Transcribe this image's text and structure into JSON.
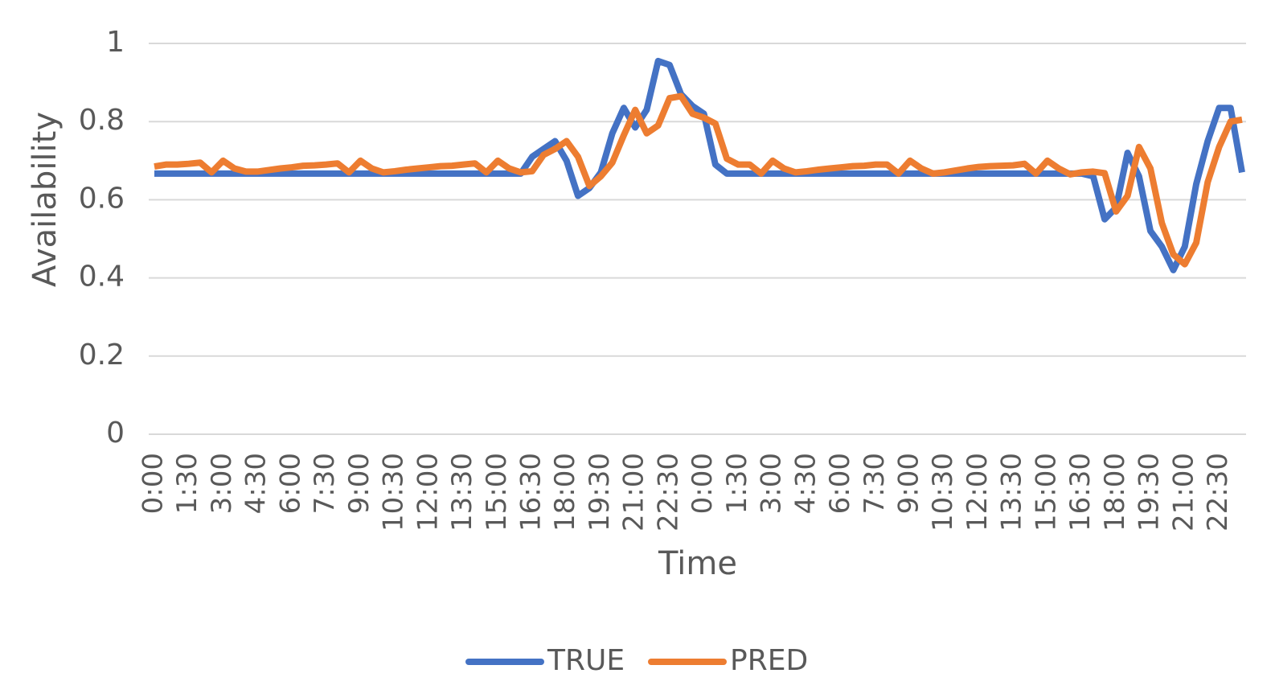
{
  "chart_data": {
    "type": "line",
    "x_label": "Time",
    "y_label": "Availability",
    "categories": [
      "0:00",
      null,
      null,
      "1:30",
      null,
      null,
      "3:00",
      null,
      null,
      "4:30",
      null,
      null,
      "6:00",
      null,
      null,
      "7:30",
      null,
      null,
      "9:00",
      null,
      null,
      "10:30",
      null,
      null,
      "12:00",
      null,
      null,
      "13:30",
      null,
      null,
      "15:00",
      null,
      null,
      "16:30",
      null,
      null,
      "18:00",
      null,
      null,
      "19:30",
      null,
      null,
      "21:00",
      null,
      null,
      "22:30",
      null,
      null,
      "0:00",
      null,
      null,
      "1:30",
      null,
      null,
      "3:00",
      null,
      null,
      "4:30",
      null,
      null,
      "6:00",
      null,
      null,
      "7:30",
      null,
      null,
      "9:00",
      null,
      null,
      "10:30",
      null,
      null,
      "12:00",
      null,
      null,
      "13:30",
      null,
      null,
      "15:00",
      null,
      null,
      "16:30",
      null,
      null,
      "18:00",
      null,
      null,
      "19:30",
      null,
      null,
      "21:00",
      null,
      null,
      "22:30",
      null,
      null
    ],
    "series": [
      {
        "name": "TRUE",
        "color": "#4472c4",
        "values": [
          0.667,
          0.667,
          0.667,
          0.667,
          0.667,
          0.667,
          0.667,
          0.667,
          0.667,
          0.667,
          0.667,
          0.667,
          0.667,
          0.667,
          0.667,
          0.667,
          0.667,
          0.667,
          0.667,
          0.667,
          0.667,
          0.667,
          0.667,
          0.667,
          0.667,
          0.667,
          0.667,
          0.667,
          0.667,
          0.667,
          0.667,
          0.667,
          0.667,
          0.71,
          0.73,
          0.75,
          0.7,
          0.61,
          0.63,
          0.67,
          0.77,
          0.835,
          0.785,
          0.83,
          0.955,
          0.945,
          0.87,
          0.84,
          0.82,
          0.69,
          0.667,
          0.667,
          0.667,
          0.667,
          0.667,
          0.667,
          0.667,
          0.667,
          0.667,
          0.667,
          0.667,
          0.667,
          0.667,
          0.667,
          0.667,
          0.667,
          0.667,
          0.667,
          0.667,
          0.667,
          0.667,
          0.667,
          0.667,
          0.667,
          0.667,
          0.667,
          0.667,
          0.667,
          0.667,
          0.667,
          0.667,
          0.667,
          0.66,
          0.55,
          0.58,
          0.72,
          0.66,
          0.52,
          0.48,
          0.42,
          0.48,
          0.64,
          0.75,
          0.835,
          0.835,
          0.67
        ]
      },
      {
        "name": "PRED",
        "color": "#ed7d31",
        "values": [
          0.685,
          0.69,
          0.69,
          0.692,
          0.695,
          0.67,
          0.7,
          0.68,
          0.672,
          0.672,
          0.676,
          0.68,
          0.683,
          0.687,
          0.688,
          0.69,
          0.693,
          0.67,
          0.7,
          0.68,
          0.67,
          0.673,
          0.677,
          0.68,
          0.683,
          0.686,
          0.687,
          0.69,
          0.693,
          0.67,
          0.7,
          0.68,
          0.67,
          0.673,
          0.715,
          0.73,
          0.75,
          0.71,
          0.635,
          0.66,
          0.695,
          0.765,
          0.83,
          0.77,
          0.79,
          0.86,
          0.865,
          0.82,
          0.81,
          0.795,
          0.705,
          0.69,
          0.69,
          0.667,
          0.7,
          0.68,
          0.67,
          0.673,
          0.677,
          0.68,
          0.683,
          0.686,
          0.687,
          0.69,
          0.69,
          0.667,
          0.7,
          0.68,
          0.667,
          0.67,
          0.675,
          0.68,
          0.684,
          0.686,
          0.687,
          0.688,
          0.692,
          0.667,
          0.7,
          0.68,
          0.665,
          0.67,
          0.672,
          0.668,
          0.57,
          0.61,
          0.735,
          0.68,
          0.54,
          0.46,
          0.435,
          0.49,
          0.645,
          0.735,
          0.8,
          0.805
        ]
      }
    ],
    "ylim": [
      0,
      1
    ],
    "yticks": [
      0,
      0.2,
      0.4,
      0.6,
      0.8,
      1
    ],
    "grid": true,
    "legend": "bottom"
  }
}
